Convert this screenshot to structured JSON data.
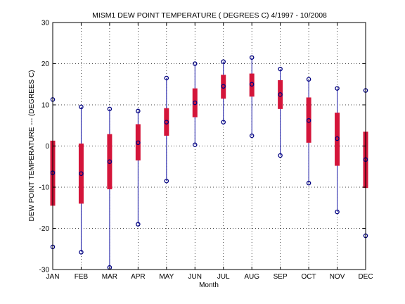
{
  "chart_data": {
    "type": "box",
    "title": "MISM1  DEW POINT TEMPERATURE ( DEGREES C) 4/1997 - 10/2008",
    "xlabel": "Month",
    "ylabel": "DEW POINT TEMPERATURE --- (DEGREES C)",
    "ylim": [
      -30,
      30
    ],
    "yticks": [
      -30,
      -20,
      -10,
      0,
      10,
      20,
      30
    ],
    "grid": true,
    "categories": [
      "JAN",
      "FEB",
      "MAR",
      "APR",
      "MAY",
      "JUN",
      "JUL",
      "AUG",
      "SEP",
      "OCT",
      "NOV",
      "DEC"
    ],
    "min": [
      -24.5,
      -25.8,
      -29.5,
      -19.0,
      -8.5,
      0.3,
      5.8,
      2.5,
      -2.3,
      -9.0,
      -16.0,
      -21.8
    ],
    "q1": [
      -14.5,
      -14.0,
      -10.5,
      -3.5,
      2.5,
      7.0,
      11.5,
      12.0,
      9.0,
      0.8,
      -4.8,
      -10.2
    ],
    "median": [
      -6.5,
      -6.7,
      -3.8,
      0.8,
      5.8,
      10.5,
      14.5,
      15.0,
      12.5,
      6.2,
      1.8,
      -3.3
    ],
    "q3": [
      1.3,
      0.6,
      2.9,
      5.3,
      9.2,
      14.0,
      17.3,
      17.6,
      16.0,
      11.8,
      8.1,
      3.5
    ],
    "max": [
      11.3,
      9.5,
      9.0,
      8.5,
      16.5,
      20.0,
      20.5,
      21.5,
      18.7,
      16.2,
      14.0,
      13.5
    ],
    "colors": {
      "box": "#d4153a",
      "whisker": "#1a1aa6",
      "marker": "#000080",
      "grid": "#000000"
    }
  }
}
